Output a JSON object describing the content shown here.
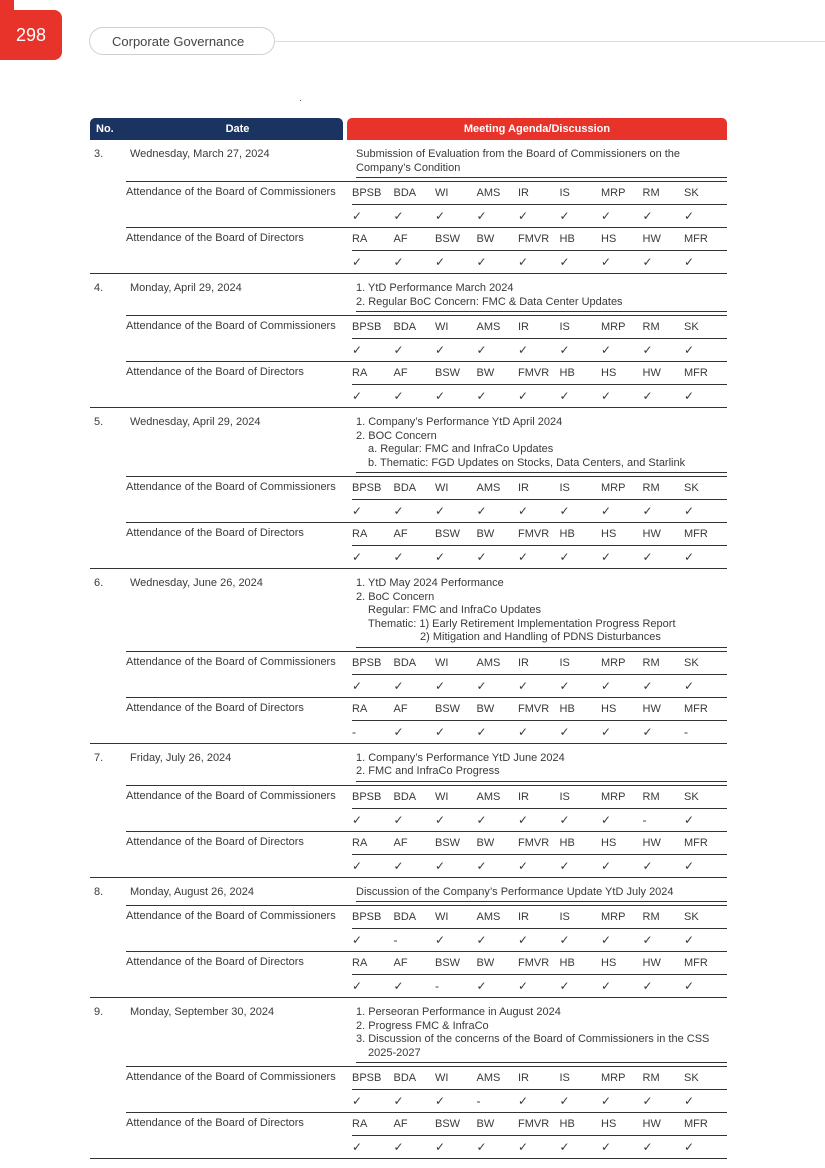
{
  "page_number": "298",
  "section_title": "Corporate Governance",
  "table_header": {
    "no": "No.",
    "date": "Date",
    "agenda": "Meeting Agenda/Discussion"
  },
  "labels": {
    "boc": "Attendance of the Board of Commissioners",
    "bod": "Attendance of the Board of Directors"
  },
  "boc_codes": [
    "BPSB",
    "BDA",
    "WI",
    "AMS",
    "IR",
    "IS",
    "MRP",
    "RM",
    "SK"
  ],
  "bod_codes": [
    "RA",
    "AF",
    "BSW",
    "BW",
    "FMVR",
    "HB",
    "HS",
    "HW",
    "MFR"
  ],
  "meetings": [
    {
      "no": "3.",
      "date": "Wednesday, March 27, 2024",
      "agenda": [
        {
          "text": "Submission of Evaluation from the Board of Commissioners on the Company’s Condition",
          "level": 0
        }
      ],
      "boc": [
        "✓",
        "✓",
        "✓",
        "✓",
        "✓",
        "✓",
        "✓",
        "✓",
        "✓"
      ],
      "bod": [
        "✓",
        "✓",
        "✓",
        "✓",
        "✓",
        "✓",
        "✓",
        "✓",
        "✓"
      ]
    },
    {
      "no": "4.",
      "date": "Monday, April 29, 2024",
      "agenda": [
        {
          "text": "1. YtD Performance March 2024",
          "level": 0
        },
        {
          "text": "2. Regular BoC Concern: FMC & Data Center Updates",
          "level": 0
        }
      ],
      "boc": [
        "✓",
        "✓",
        "✓",
        "✓",
        "✓",
        "✓",
        "✓",
        "✓",
        "✓"
      ],
      "bod": [
        "✓",
        "✓",
        "✓",
        "✓",
        "✓",
        "✓",
        "✓",
        "✓",
        "✓"
      ]
    },
    {
      "no": "5.",
      "date": "Wednesday, April 29, 2024",
      "agenda": [
        {
          "text": "1. Company’s Performance YtD April 2024",
          "level": 0
        },
        {
          "text": "2. BOC Concern",
          "level": 0
        },
        {
          "text": "a. Regular: FMC and InfraCo Updates",
          "level": 1
        },
        {
          "text": "b. Thematic: FGD Updates on Stocks, Data Centers, and Starlink",
          "level": 1
        }
      ],
      "boc": [
        "✓",
        "✓",
        "✓",
        "✓",
        "✓",
        "✓",
        "✓",
        "✓",
        "✓"
      ],
      "bod": [
        "✓",
        "✓",
        "✓",
        "✓",
        "✓",
        "✓",
        "✓",
        "✓",
        "✓"
      ]
    },
    {
      "no": "6.",
      "date": "Wednesday, June 26, 2024",
      "agenda": [
        {
          "text": "1. YtD May 2024 Performance",
          "level": 0
        },
        {
          "text": "2. BoC Concern",
          "level": 0
        },
        {
          "text": "Regular: FMC and InfraCo Updates",
          "level": 2
        },
        {
          "text": "Thematic: 1) Early Retirement Implementation Progress Report",
          "level": 2
        },
        {
          "text": "2) Mitigation and Handling of PDNS Disturbances",
          "level": 3
        }
      ],
      "boc": [
        "✓",
        "✓",
        "✓",
        "✓",
        "✓",
        "✓",
        "✓",
        "✓",
        "✓"
      ],
      "bod": [
        "-",
        "✓",
        "✓",
        "✓",
        "✓",
        "✓",
        "✓",
        "✓",
        "-"
      ]
    },
    {
      "no": "7.",
      "date": "Friday, July 26, 2024",
      "agenda": [
        {
          "text": "1. Company’s Performance YtD June 2024",
          "level": 0
        },
        {
          "text": "2. FMC and InfraCo Progress",
          "level": 0
        }
      ],
      "boc": [
        "✓",
        "✓",
        "✓",
        "✓",
        "✓",
        "✓",
        "✓",
        "-",
        "✓"
      ],
      "bod": [
        "✓",
        "✓",
        "✓",
        "✓",
        "✓",
        "✓",
        "✓",
        "✓",
        "✓"
      ]
    },
    {
      "no": "8.",
      "date": "Monday, August 26, 2024",
      "agenda": [
        {
          "text": "Discussion of the Company’s Performance Update YtD July 2024",
          "level": 0
        }
      ],
      "boc": [
        "✓",
        "-",
        "✓",
        "✓",
        "✓",
        "✓",
        "✓",
        "✓",
        "✓"
      ],
      "bod": [
        "✓",
        "✓",
        "-",
        "✓",
        "✓",
        "✓",
        "✓",
        "✓",
        "✓"
      ]
    },
    {
      "no": "9.",
      "date": "Monday, September 30, 2024",
      "agenda": [
        {
          "text": "1. Perseoran Performance in August 2024",
          "level": 0
        },
        {
          "text": "2. Progress FMC & InfraCo",
          "level": 0
        },
        {
          "text": "3. Discussion of the concerns of the Board of Commissioners in the CSS 2025-2027",
          "level": 0
        }
      ],
      "boc": [
        "✓",
        "✓",
        "✓",
        "-",
        "✓",
        "✓",
        "✓",
        "✓",
        "✓"
      ],
      "bod": [
        "✓",
        "✓",
        "✓",
        "✓",
        "✓",
        "✓",
        "✓",
        "✓",
        "✓"
      ]
    }
  ]
}
